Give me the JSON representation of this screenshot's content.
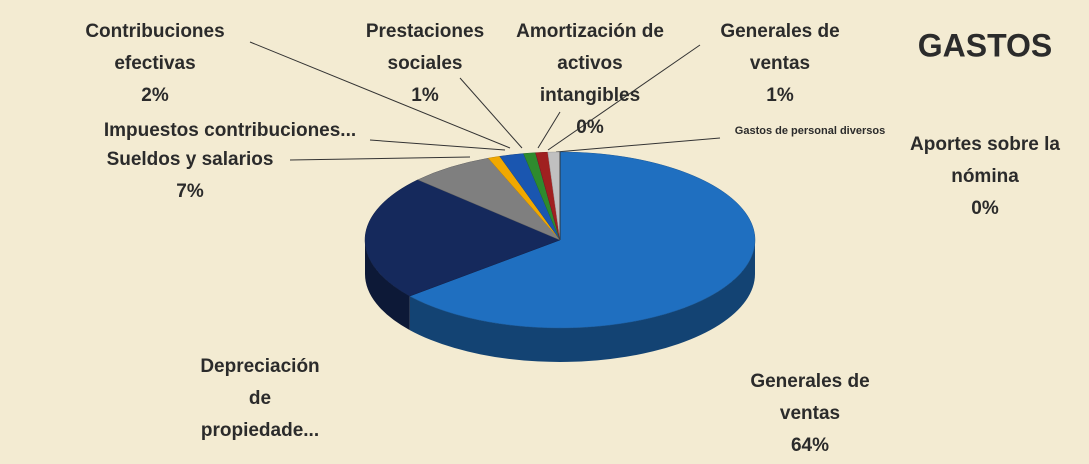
{
  "chart_data": {
    "type": "pie3d",
    "title": "GASTOS",
    "categories": [
      [
        "Generales de",
        "ventas"
      ],
      [
        "Depreciación",
        "de",
        "propiedade..."
      ],
      [
        "Sueldos y salarios"
      ],
      [
        "Impuestos contribuciones..."
      ],
      [
        "Contribuciones",
        "efectivas"
      ],
      [
        "Prestaciones",
        "sociales"
      ],
      [
        "Amortización de",
        "activos",
        "intangibles"
      ],
      [
        "Generales de",
        "ventas"
      ],
      [
        "Gastos de personal diversos"
      ],
      [
        "Aportes sobre la",
        "nómina"
      ]
    ],
    "values": [
      64,
      23,
      7,
      1,
      2,
      1,
      0,
      1,
      1,
      0
    ],
    "value_labels": [
      "64%",
      null,
      "7%",
      null,
      "2%",
      "1%",
      "0%",
      "1%",
      null,
      "0%"
    ],
    "colors": [
      "#1f6fc0",
      "#15295c",
      "#7f7f7f",
      "#f0a800",
      "#1a56b0",
      "#2e8b2e",
      "#5a2d82",
      "#a02020",
      "#c0c0c0",
      "#222222"
    ]
  }
}
